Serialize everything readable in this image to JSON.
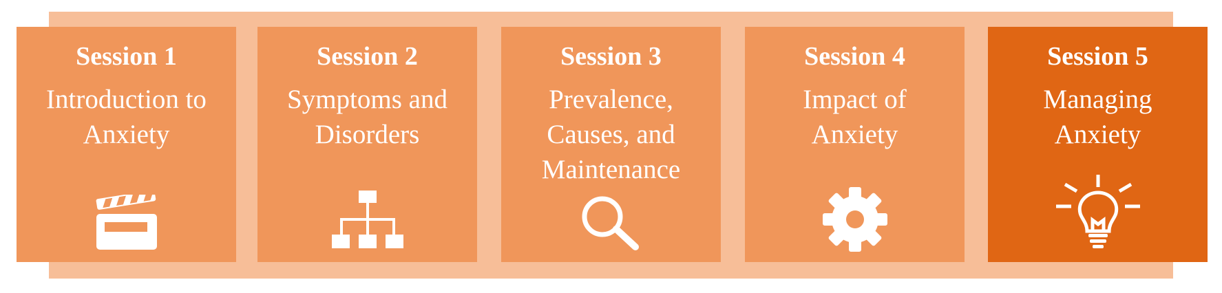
{
  "sessions": [
    {
      "title": "Session 1",
      "subtitle": "Introduction to\nAnxiety",
      "icon": "clapperboard-icon"
    },
    {
      "title": "Session 2",
      "subtitle": "Symptoms and\nDisorders",
      "icon": "hierarchy-icon"
    },
    {
      "title": "Session 3",
      "subtitle": "Prevalence,\nCauses, and\nMaintenance",
      "icon": "magnifier-icon"
    },
    {
      "title": "Session 4",
      "subtitle": "Impact of\nAnxiety",
      "icon": "gear-icon"
    },
    {
      "title": "Session 5",
      "subtitle": "Managing\nAnxiety",
      "icon": "lightbulb-icon"
    }
  ],
  "active_session": 5,
  "colors": {
    "band": "#f7be98",
    "card": "#f0965a",
    "card_active": "#e06614",
    "text": "#ffffff"
  }
}
